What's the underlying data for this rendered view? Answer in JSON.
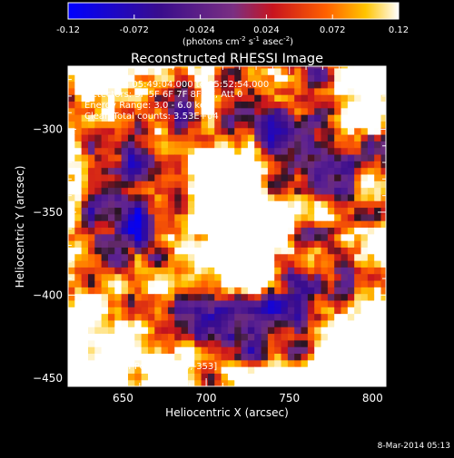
{
  "colorbar": {
    "tick_labels": [
      "-0.12",
      "-0.072",
      "-0.024",
      "0.024",
      "0.072",
      "0.12"
    ],
    "tick_values": [
      -0.12,
      -0.072,
      -0.024,
      0.024,
      0.072,
      0.12
    ],
    "units_prefix": "(photons cm",
    "units_sup1": "-2",
    "units_mid1": " s",
    "units_sup2": "-1",
    "units_mid2": " asec",
    "units_sup3": "-2",
    "units_suffix": ")",
    "range": [
      -0.12,
      0.12
    ]
  },
  "chart_data": {
    "type": "heatmap",
    "title": "Reconstructed RHESSI Image",
    "xlabel": "Heliocentric X (arcsec)",
    "ylabel": "Heliocentric Y (arcsec)",
    "xlim": [
      617,
      808
    ],
    "ylim": [
      -455,
      -262
    ],
    "x_ticks": [
      650,
      700,
      750,
      800
    ],
    "x_tick_labels": [
      "650",
      "700",
      "750",
      "800"
    ],
    "y_ticks": [
      -300,
      -350,
      -400,
      -450
    ],
    "y_tick_labels": [
      "−300",
      "−350",
      "−400",
      "−450"
    ],
    "colormap": "red-temperature (blue-purple-red-yellow-white)",
    "annotations": [
      " 8-Mar-2014 05:49:04.000 to 05:52:54.000",
      "Detectors: 3F 5F 6F 7F 8F 9F, Att 0",
      "Energy Range: 3.0 - 6.0 keV",
      "Clean     Total counts: 3.53E+04"
    ],
    "peak_label": "Position of Peak = [719,-353]",
    "peak": [
      719,
      -353
    ],
    "source_component": {
      "center": [
        717,
        -352
      ],
      "peak_value": 0.12
    },
    "grid": false
  },
  "footer": {
    "timestamp": "8-Mar-2014 05:13"
  },
  "colors": {
    "background": "#000000",
    "text": "#ffffff",
    "colormap_stops": [
      "#0000ff",
      "#4b0a9a",
      "#7a2f82",
      "#e81c00",
      "#ffc400",
      "#ffffff"
    ]
  }
}
